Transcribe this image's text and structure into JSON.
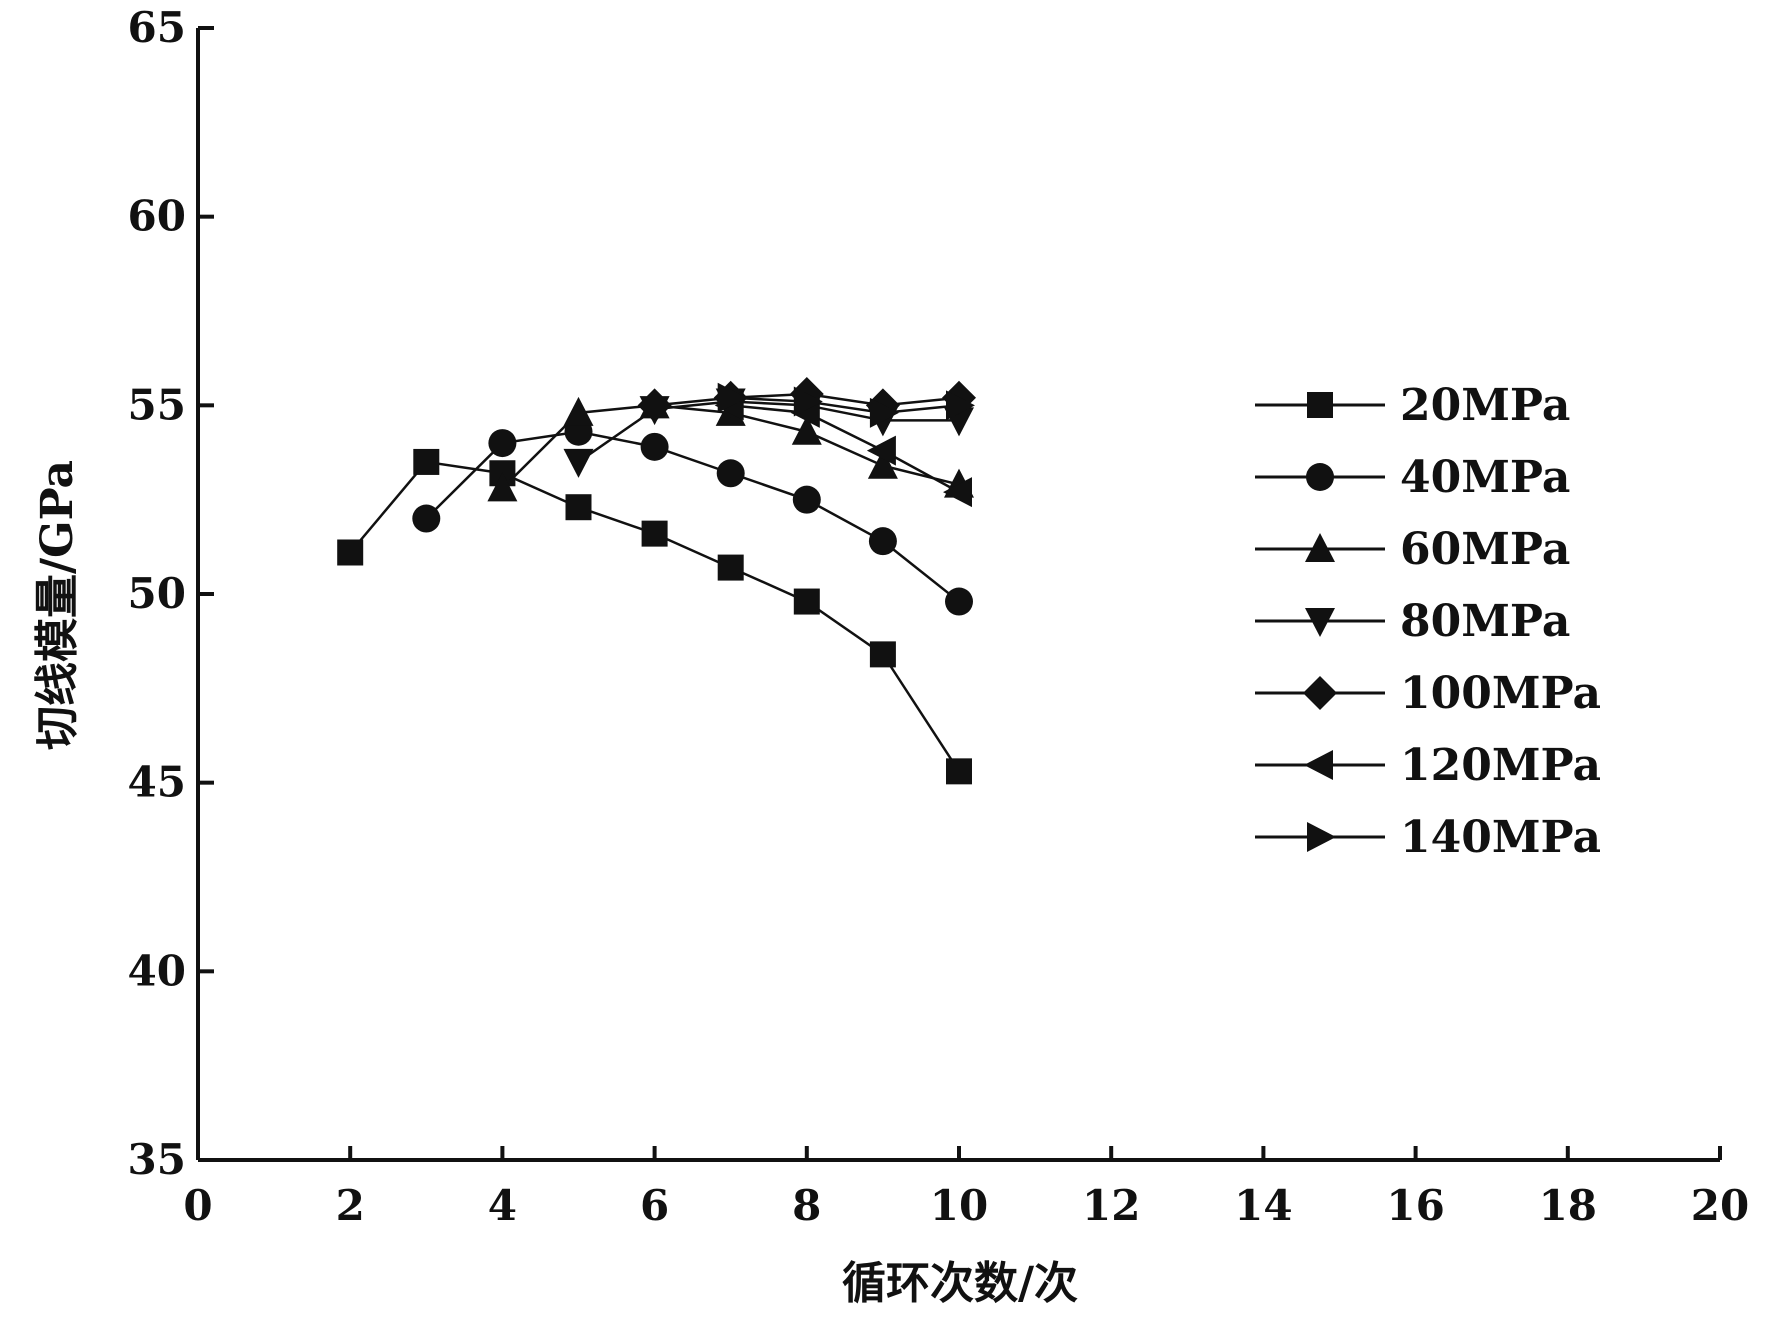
{
  "chart_data": {
    "type": "line",
    "xlabel": "循环次数/次",
    "ylabel": "切线模量/GPa",
    "xlim": [
      0,
      20
    ],
    "ylim": [
      35,
      65
    ],
    "xticks": [
      0,
      2,
      4,
      6,
      8,
      10,
      12,
      14,
      16,
      18,
      20
    ],
    "yticks": [
      35,
      40,
      45,
      50,
      55,
      60,
      65
    ],
    "grid": false,
    "legend_position": "right",
    "series": [
      {
        "name": "20MPa",
        "marker": "square",
        "x": [
          2,
          3,
          4,
          5,
          6,
          7,
          8,
          9,
          10
        ],
        "y": [
          51.1,
          53.5,
          53.2,
          52.3,
          51.6,
          50.7,
          49.8,
          48.4,
          45.3
        ]
      },
      {
        "name": "40MPa",
        "marker": "circle",
        "x": [
          3,
          4,
          5,
          6,
          7,
          8,
          9,
          10
        ],
        "y": [
          52.0,
          54.0,
          54.3,
          53.9,
          53.2,
          52.5,
          51.4,
          49.8
        ]
      },
      {
        "name": "60MPa",
        "marker": "triangle-up",
        "x": [
          4,
          5,
          6,
          7,
          8,
          9,
          10
        ],
        "y": [
          52.8,
          54.8,
          55.0,
          54.8,
          54.3,
          53.4,
          52.9
        ]
      },
      {
        "name": "80MPa",
        "marker": "triangle-down",
        "x": [
          5,
          6,
          7,
          8,
          9,
          10
        ],
        "y": [
          53.5,
          54.9,
          55.1,
          55.0,
          54.6,
          54.6
        ]
      },
      {
        "name": "100MPa",
        "marker": "diamond",
        "x": [
          6,
          7,
          8,
          9,
          10
        ],
        "y": [
          55.0,
          55.2,
          55.3,
          55.0,
          55.2
        ]
      },
      {
        "name": "120MPa",
        "marker": "triangle-left",
        "x": [
          7,
          8,
          9,
          10
        ],
        "y": [
          55.0,
          54.8,
          53.8,
          52.7
        ]
      },
      {
        "name": "140MPa",
        "marker": "triangle-right",
        "x": [
          7,
          8,
          9,
          10
        ],
        "y": [
          55.2,
          55.1,
          54.8,
          55.0
        ]
      }
    ]
  }
}
